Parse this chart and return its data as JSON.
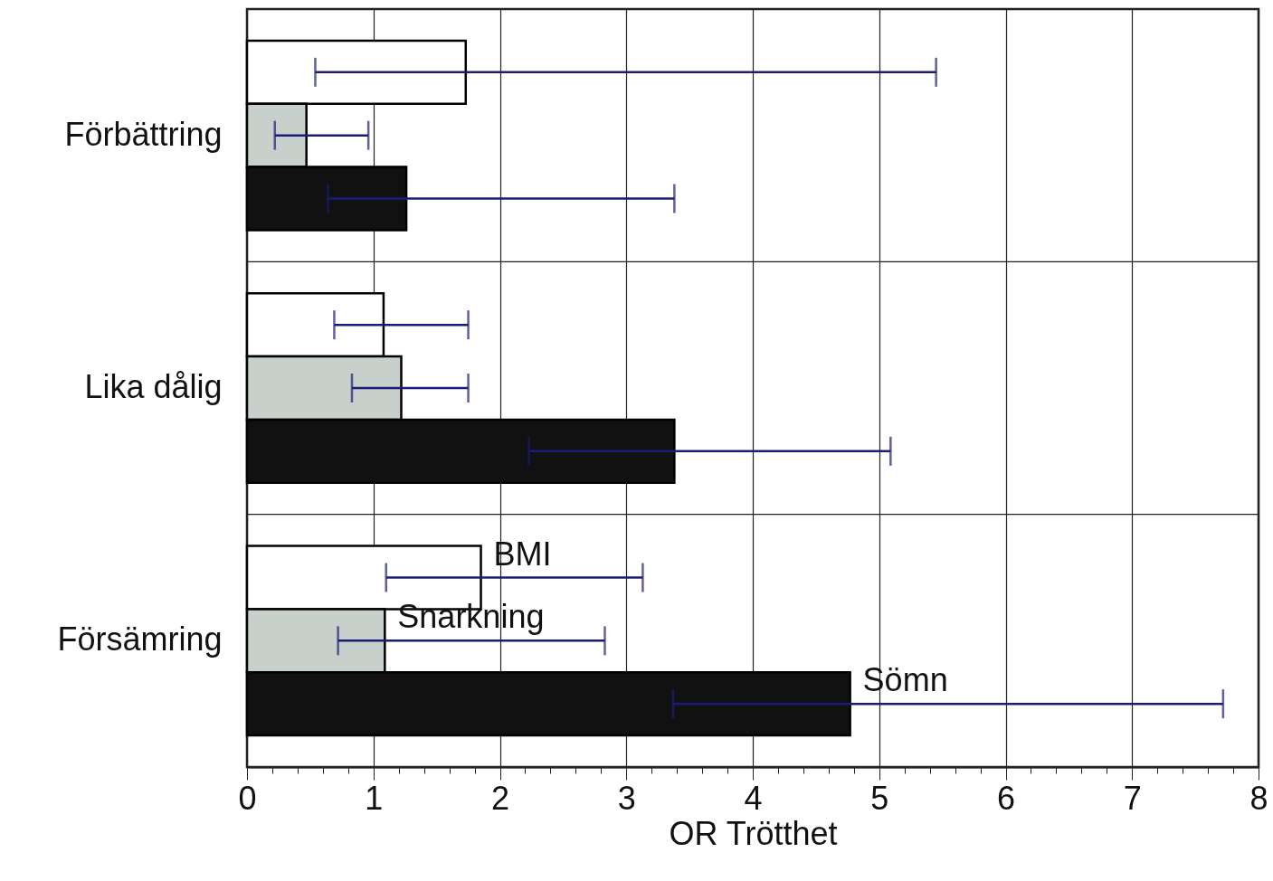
{
  "chart_data": {
    "type": "bar",
    "orientation": "horizontal",
    "xlabel": "OR Trötthet",
    "categories": [
      "Förbättring",
      "Lika dålig",
      "Försämring"
    ],
    "series": [
      {
        "name": "BMI",
        "color": "#ffffff",
        "values": [
          1.73,
          1.08,
          1.85
        ],
        "errors": [
          [
            0.54,
            5.45
          ],
          [
            0.69,
            1.75
          ],
          [
            1.1,
            3.13
          ]
        ]
      },
      {
        "name": "Snarkning",
        "color": "#c8d0cb",
        "values": [
          0.47,
          1.22,
          1.09
        ],
        "errors": [
          [
            0.22,
            0.96
          ],
          [
            0.83,
            1.75
          ],
          [
            0.72,
            2.83
          ]
        ]
      },
      {
        "name": "Sömn",
        "color": "#111111",
        "values": [
          1.26,
          3.38,
          4.77
        ],
        "errors": [
          [
            0.64,
            3.38
          ],
          [
            2.23,
            5.09
          ],
          [
            3.37,
            7.72
          ]
        ]
      }
    ],
    "xlim": [
      0,
      8
    ],
    "xticks": [
      0,
      {
        "value": 0.2,
        "label": null
      },
      {
        "value": 0.4,
        "label": null
      },
      {
        "value": 0.6,
        "label": null
      },
      {
        "value": 0.8,
        "label": null
      },
      1,
      {
        "value": 1.2,
        "label": null
      },
      {
        "value": 1.4,
        "label": null
      },
      {
        "value": 1.6,
        "label": null
      },
      {
        "value": 1.8,
        "label": null
      },
      2,
      {
        "value": 2.2,
        "label": null
      },
      {
        "value": 2.4,
        "label": null
      },
      {
        "value": 2.6,
        "label": null
      },
      {
        "value": 2.8,
        "label": null
      },
      3,
      {
        "value": 3.2,
        "label": null
      },
      {
        "value": 3.4,
        "label": null
      },
      {
        "value": 3.6,
        "label": null
      },
      {
        "value": 3.8,
        "label": null
      },
      4,
      {
        "value": 4.2,
        "label": null
      },
      {
        "value": 4.4,
        "label": null
      },
      {
        "value": 4.6,
        "label": null
      },
      {
        "value": 4.8,
        "label": null
      },
      5,
      {
        "value": 5.2,
        "label": null
      },
      {
        "value": 5.4,
        "label": null
      },
      {
        "value": 5.6,
        "label": null
      },
      {
        "value": 5.8,
        "label": null
      },
      6,
      {
        "value": 6.2,
        "label": null
      },
      {
        "value": 6.4,
        "label": null
      },
      {
        "value": 6.6,
        "label": null
      },
      {
        "value": 6.8,
        "label": null
      },
      7,
      {
        "value": 7.2,
        "label": null
      },
      {
        "value": 7.4,
        "label": null
      },
      {
        "value": 7.6,
        "label": null
      },
      {
        "value": 7.8,
        "label": null
      },
      8
    ],
    "grid": true,
    "legend": false
  }
}
